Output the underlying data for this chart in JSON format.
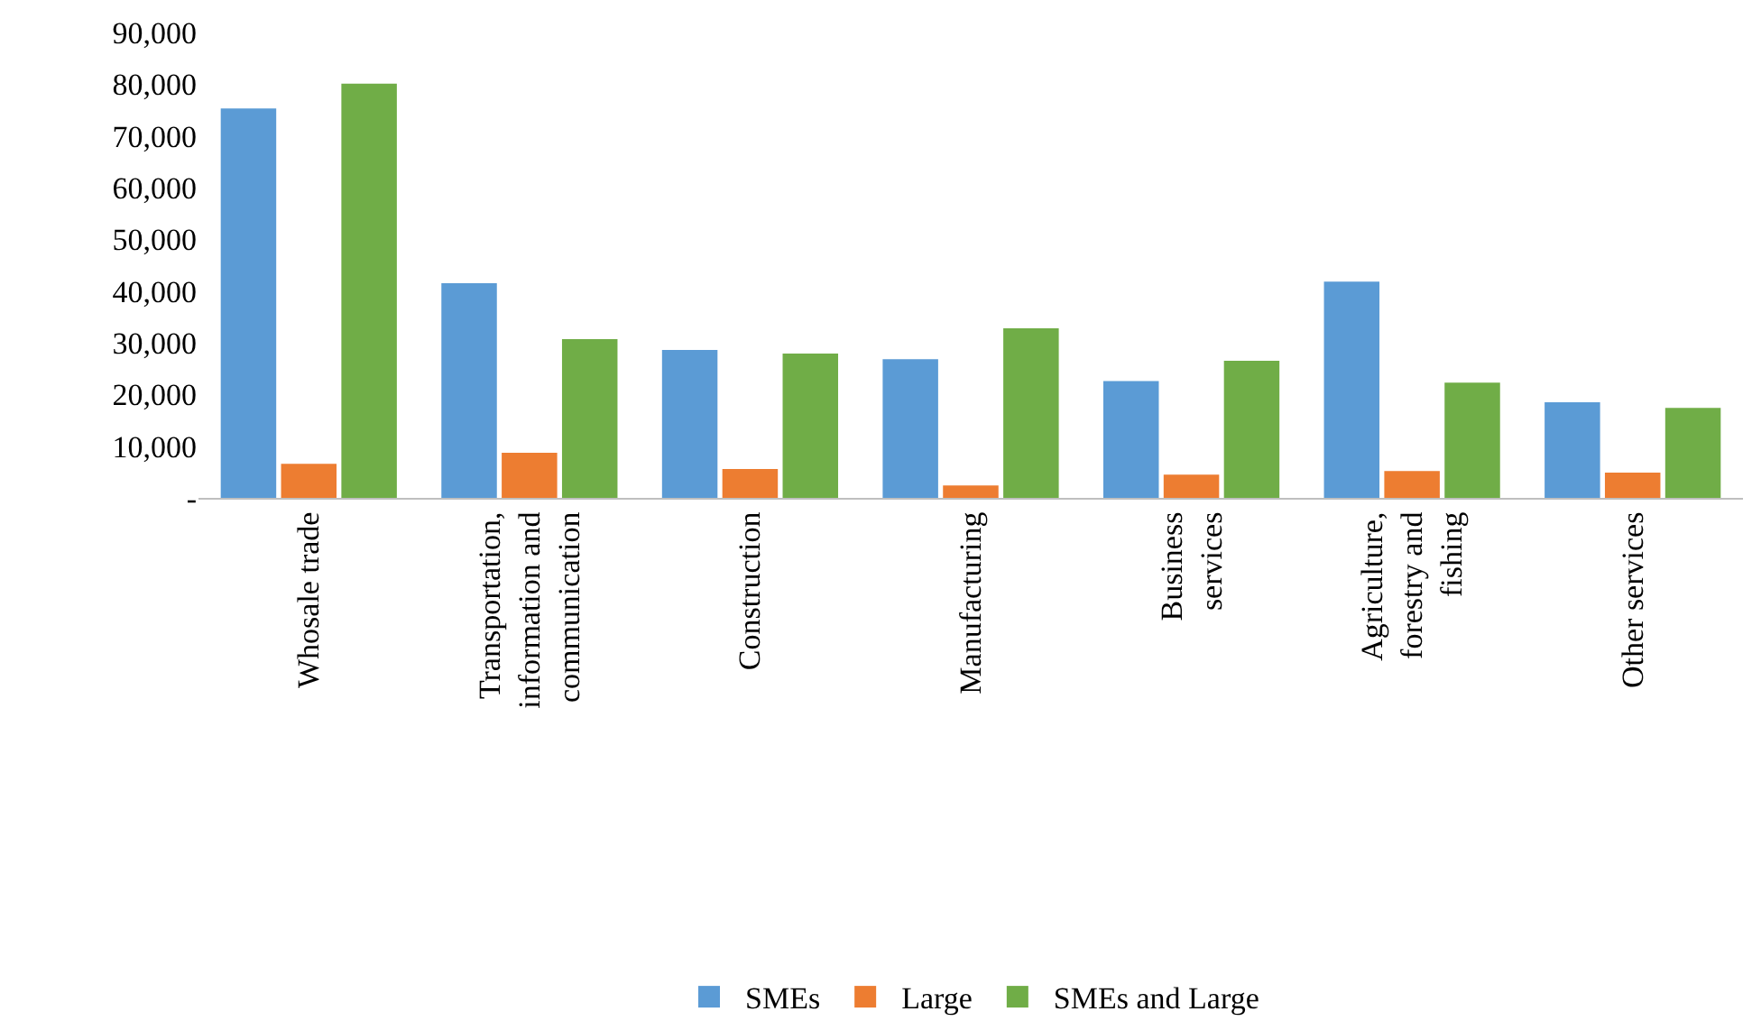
{
  "chart_data": {
    "type": "bar",
    "categories": [
      "Whosale trade",
      "Transportation, information and communication",
      "Construction",
      "Manufacturing",
      "Business services",
      "Agriculture, forestry and fishing",
      "Other services"
    ],
    "series": [
      {
        "name": "SMEs",
        "color": "#5b9bd5",
        "values": [
          75300,
          41500,
          28600,
          26800,
          22600,
          41800,
          18500
        ]
      },
      {
        "name": "Large",
        "color": "#ed7d31",
        "values": [
          6600,
          8700,
          5600,
          2400,
          4500,
          5200,
          4900
        ]
      },
      {
        "name": "SMEs and Large",
        "color": "#70ad47",
        "values": [
          80100,
          30700,
          27900,
          32800,
          26500,
          22300,
          17400
        ]
      }
    ],
    "ylim": [
      0,
      90000
    ],
    "yticks": [
      {
        "value": 0,
        "label": "-"
      },
      {
        "value": 10000,
        "label": "10,000"
      },
      {
        "value": 20000,
        "label": "20,000"
      },
      {
        "value": 30000,
        "label": "30,000"
      },
      {
        "value": 40000,
        "label": "40,000"
      },
      {
        "value": 50000,
        "label": "50,000"
      },
      {
        "value": 60000,
        "label": "60,000"
      },
      {
        "value": 70000,
        "label": "70,000"
      },
      {
        "value": 80000,
        "label": "80,000"
      },
      {
        "value": 90000,
        "label": "90,000"
      }
    ],
    "grid": false,
    "legend": "bottom"
  }
}
